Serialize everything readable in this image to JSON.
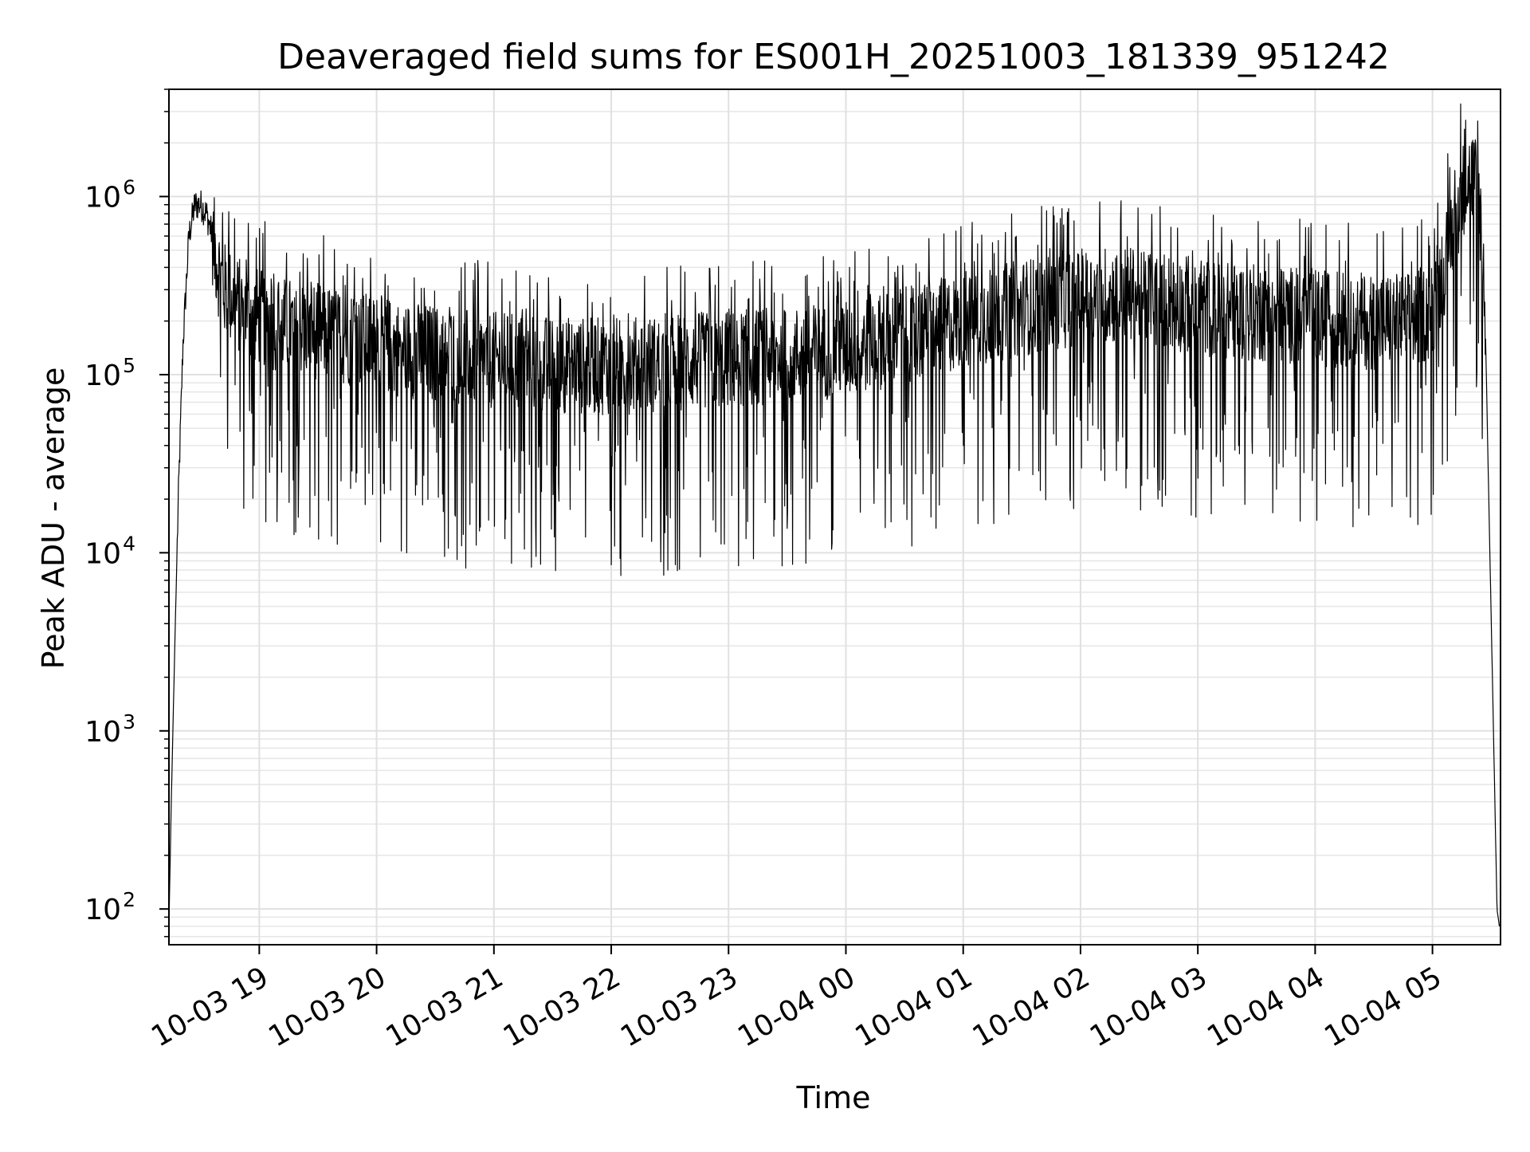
{
  "chart_data": {
    "type": "line",
    "title": "Deaveraged field sums for ES001H_20251003_181339_951242",
    "xlabel": "Time",
    "ylabel": "Peak ADU - average",
    "yscale": "log",
    "xlim_hours": [
      18.23,
      29.58
    ],
    "ylim": [
      63,
      4000000
    ],
    "grid": true,
    "line_color": "#000000",
    "x_ticks": [
      {
        "label": "10-03 19",
        "hour": 19
      },
      {
        "label": "10-03 20",
        "hour": 20
      },
      {
        "label": "10-03 21",
        "hour": 21
      },
      {
        "label": "10-03 22",
        "hour": 22
      },
      {
        "label": "10-03 23",
        "hour": 23
      },
      {
        "label": "10-04 00",
        "hour": 24
      },
      {
        "label": "10-04 01",
        "hour": 25
      },
      {
        "label": "10-04 02",
        "hour": 26
      },
      {
        "label": "10-04 03",
        "hour": 27
      },
      {
        "label": "10-04 04",
        "hour": 28
      },
      {
        "label": "10-04 05",
        "hour": 29
      }
    ],
    "y_ticks": [
      {
        "base": "10",
        "exp": "2",
        "value": 100
      },
      {
        "base": "10",
        "exp": "3",
        "value": 1000
      },
      {
        "base": "10",
        "exp": "4",
        "value": 10000
      },
      {
        "base": "10",
        "exp": "5",
        "value": 100000
      },
      {
        "base": "10",
        "exp": "6",
        "value": 1000000
      }
    ],
    "series": [
      {
        "name": "deaveraged field sum",
        "x_hours": [
          18.23,
          18.25,
          18.28,
          18.31,
          18.35,
          18.4,
          18.45,
          18.5,
          18.55,
          18.6,
          18.65,
          18.7,
          18.8,
          18.9,
          19.0,
          19.2,
          19.4,
          19.6,
          19.8,
          20.0,
          20.2,
          20.4,
          20.6,
          20.8,
          21.0,
          21.2,
          21.4,
          21.6,
          21.8,
          22.0,
          22.2,
          22.4,
          22.6,
          22.8,
          23.0,
          23.2,
          23.4,
          23.6,
          23.8,
          24.0,
          24.2,
          24.4,
          24.6,
          24.8,
          25.0,
          25.2,
          25.4,
          25.6,
          25.8,
          26.0,
          26.2,
          26.4,
          26.6,
          26.8,
          27.0,
          27.2,
          27.4,
          27.6,
          27.8,
          28.0,
          28.2,
          28.4,
          28.6,
          28.8,
          29.0,
          29.1,
          29.2,
          29.28,
          29.35,
          29.4,
          29.45,
          29.48,
          29.52,
          29.55,
          29.57
        ],
        "y_median": [
          80,
          400,
          3000,
          20000,
          150000,
          600000,
          900000,
          900000,
          800000,
          600000,
          400000,
          300000,
          250000,
          230000,
          210000,
          190000,
          180000,
          170000,
          160000,
          150000,
          140000,
          135000,
          130000,
          125000,
          120000,
          118000,
          115000,
          113000,
          112000,
          112000,
          113000,
          115000,
          118000,
          120000,
          122000,
          125000,
          128000,
          130000,
          135000,
          140000,
          150000,
          160000,
          170000,
          185000,
          200000,
          215000,
          230000,
          245000,
          260000,
          270000,
          280000,
          280000,
          270000,
          255000,
          240000,
          230000,
          225000,
          220000,
          215000,
          210000,
          205000,
          200000,
          200000,
          200000,
          230000,
          400000,
          800000,
          1200000,
          1300000,
          1000000,
          200000,
          20000,
          1000,
          100,
          80
        ]
      }
    ]
  }
}
